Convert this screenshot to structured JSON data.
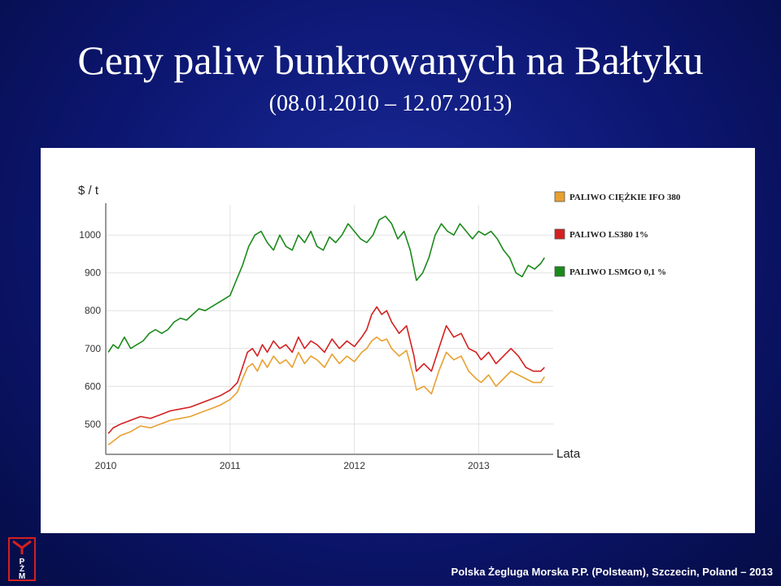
{
  "slide": {
    "title": "Ceny paliw bunkrowanych na Bałtyku",
    "subtitle": "(08.01.2010 – 12.07.2013)",
    "footer": "Polska Żegluga Morska P.P. (Polsteam), Szczecin, Poland – 2013",
    "logo_letters": "PŻM"
  },
  "colors": {
    "background": "#0c1670",
    "ifo380": "#e8a030",
    "ls380": "#d42020",
    "lsmgo": "#1a8a1a"
  },
  "chart_data": {
    "type": "line",
    "title": "",
    "ylabel": "$ / t",
    "xlabel": "Lata",
    "ylim": [
      420,
      1080
    ],
    "xlim": [
      2010.0,
      2013.6
    ],
    "yticks": [
      500,
      600,
      700,
      800,
      900,
      1000
    ],
    "xticks": [
      "2010",
      "2011",
      "2012",
      "2013"
    ],
    "legend_position": "top-right",
    "series": [
      {
        "name": "PALIWO CIĘŻKIE IFO 380",
        "color": "#e8a030",
        "x": [
          2010.02,
          2010.06,
          2010.12,
          2010.2,
          2010.28,
          2010.36,
          2010.44,
          2010.52,
          2010.6,
          2010.68,
          2010.76,
          2010.84,
          2010.92,
          2011.0,
          2011.06,
          2011.1,
          2011.14,
          2011.18,
          2011.22,
          2011.26,
          2011.3,
          2011.35,
          2011.4,
          2011.45,
          2011.5,
          2011.55,
          2011.6,
          2011.65,
          2011.7,
          2011.76,
          2011.82,
          2011.88,
          2011.94,
          2012.0,
          2012.06,
          2012.1,
          2012.14,
          2012.18,
          2012.22,
          2012.26,
          2012.3,
          2012.36,
          2012.42,
          2012.48,
          2012.5,
          2012.56,
          2012.62,
          2012.68,
          2012.74,
          2012.8,
          2012.86,
          2012.92,
          2012.98,
          2013.02,
          2013.08,
          2013.14,
          2013.2,
          2013.26,
          2013.32,
          2013.38,
          2013.44,
          2013.5,
          2013.53
        ],
        "values": [
          445,
          455,
          470,
          480,
          495,
          490,
          500,
          510,
          515,
          520,
          530,
          540,
          550,
          565,
          585,
          620,
          650,
          660,
          640,
          670,
          650,
          680,
          660,
          670,
          650,
          690,
          660,
          680,
          670,
          650,
          685,
          660,
          680,
          665,
          690,
          700,
          720,
          730,
          720,
          725,
          700,
          680,
          695,
          620,
          590,
          600,
          580,
          640,
          690,
          670,
          680,
          640,
          620,
          610,
          630,
          600,
          620,
          640,
          630,
          620,
          610,
          610,
          625
        ]
      },
      {
        "name": "PALIWO LS380 1%",
        "color": "#d42020",
        "x": [
          2010.02,
          2010.06,
          2010.12,
          2010.2,
          2010.28,
          2010.36,
          2010.44,
          2010.52,
          2010.6,
          2010.68,
          2010.76,
          2010.84,
          2010.92,
          2011.0,
          2011.06,
          2011.1,
          2011.14,
          2011.18,
          2011.22,
          2011.26,
          2011.3,
          2011.35,
          2011.4,
          2011.45,
          2011.5,
          2011.55,
          2011.6,
          2011.65,
          2011.7,
          2011.76,
          2011.82,
          2011.88,
          2011.94,
          2012.0,
          2012.06,
          2012.1,
          2012.14,
          2012.18,
          2012.22,
          2012.26,
          2012.3,
          2012.36,
          2012.42,
          2012.48,
          2012.5,
          2012.56,
          2012.62,
          2012.68,
          2012.74,
          2012.8,
          2012.86,
          2012.92,
          2012.98,
          2013.02,
          2013.08,
          2013.14,
          2013.2,
          2013.26,
          2013.32,
          2013.38,
          2013.44,
          2013.5,
          2013.53
        ],
        "values": [
          475,
          490,
          500,
          510,
          520,
          515,
          525,
          535,
          540,
          545,
          555,
          565,
          575,
          590,
          610,
          650,
          690,
          700,
          680,
          710,
          690,
          720,
          700,
          710,
          690,
          730,
          700,
          720,
          710,
          690,
          725,
          700,
          720,
          705,
          730,
          750,
          790,
          810,
          790,
          800,
          770,
          740,
          760,
          680,
          640,
          660,
          640,
          700,
          760,
          730,
          740,
          700,
          690,
          670,
          690,
          660,
          680,
          700,
          680,
          650,
          640,
          640,
          650
        ]
      },
      {
        "name": "PALIWO LSMGO 0,1 %",
        "color": "#1a8a1a",
        "x": [
          2010.02,
          2010.06,
          2010.1,
          2010.15,
          2010.2,
          2010.25,
          2010.3,
          2010.35,
          2010.4,
          2010.45,
          2010.5,
          2010.55,
          2010.6,
          2010.65,
          2010.7,
          2010.75,
          2010.8,
          2010.85,
          2010.9,
          2010.95,
          2011.0,
          2011.05,
          2011.1,
          2011.15,
          2011.2,
          2011.25,
          2011.3,
          2011.35,
          2011.4,
          2011.45,
          2011.5,
          2011.55,
          2011.6,
          2011.65,
          2011.7,
          2011.75,
          2011.8,
          2011.85,
          2011.9,
          2011.95,
          2012.0,
          2012.05,
          2012.1,
          2012.15,
          2012.2,
          2012.25,
          2012.3,
          2012.35,
          2012.4,
          2012.45,
          2012.5,
          2012.55,
          2012.6,
          2012.65,
          2012.7,
          2012.75,
          2012.8,
          2012.85,
          2012.9,
          2012.95,
          2013.0,
          2013.05,
          2013.1,
          2013.15,
          2013.2,
          2013.25,
          2013.3,
          2013.35,
          2013.4,
          2013.45,
          2013.5,
          2013.53
        ],
        "values": [
          690,
          710,
          700,
          730,
          700,
          710,
          720,
          740,
          750,
          740,
          750,
          770,
          780,
          775,
          790,
          805,
          800,
          810,
          820,
          830,
          840,
          880,
          920,
          970,
          1000,
          1010,
          980,
          960,
          1000,
          970,
          960,
          1000,
          980,
          1010,
          970,
          960,
          995,
          980,
          1000,
          1030,
          1010,
          990,
          980,
          1000,
          1040,
          1050,
          1030,
          990,
          1010,
          960,
          880,
          900,
          940,
          1000,
          1030,
          1010,
          1000,
          1030,
          1010,
          990,
          1010,
          1000,
          1010,
          990,
          960,
          940,
          900,
          890,
          920,
          910,
          925,
          940
        ]
      }
    ]
  }
}
